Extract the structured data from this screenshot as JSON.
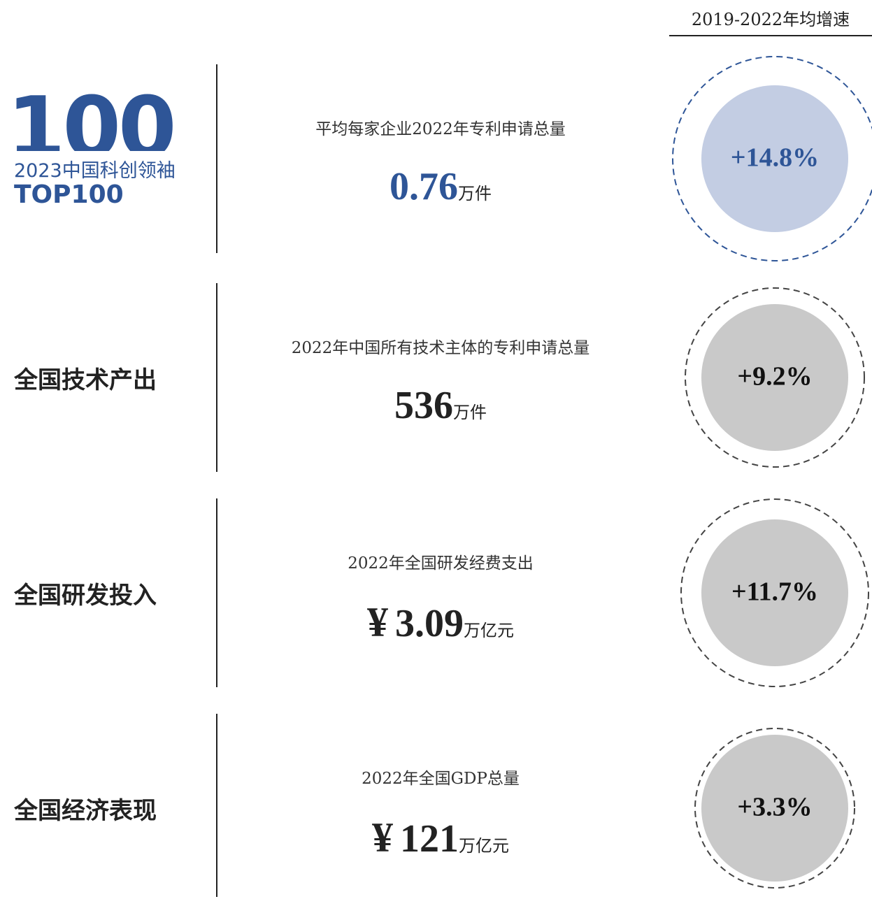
{
  "header": {
    "title": "2019-2022年均增速"
  },
  "logo": {
    "big": "100",
    "subtitle": "2023中国科创领袖",
    "name": "TOP100"
  },
  "rows": [
    {
      "description": "平均每家企业2022年专利申请总量",
      "value": "0.76",
      "unit": "万件",
      "growth": "+14.8%"
    },
    {
      "label": "全国技术产出",
      "description": "2022年中国所有技术主体的专利申请总量",
      "value": "536",
      "unit": "万件",
      "growth": "+9.2%"
    },
    {
      "label": "全国研发投入",
      "description": "2022年全国研发经费支出",
      "currency": "¥",
      "value": "3.09",
      "unit": "万亿元",
      "growth": "+11.7%"
    },
    {
      "label": "全国经济表现",
      "description": "2022年全国GDP总量",
      "currency": "¥",
      "value": "121",
      "unit": "万亿元",
      "growth": "+3.3%"
    }
  ]
}
